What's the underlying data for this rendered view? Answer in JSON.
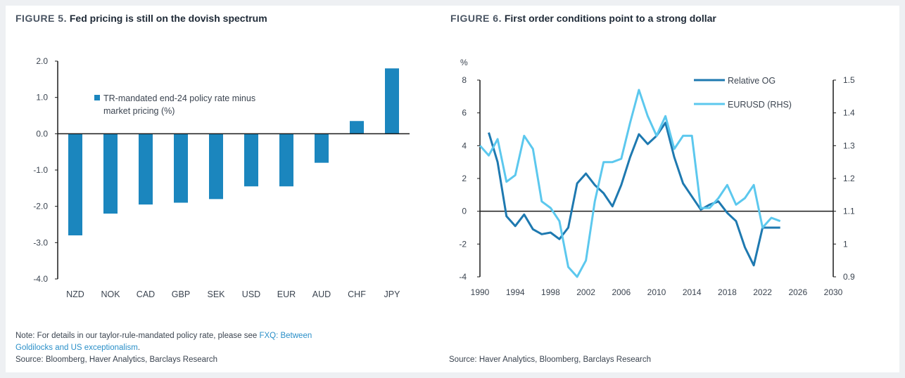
{
  "figure5": {
    "label": "FIGURE 5.",
    "title": "Fed pricing is still on the dovish spectrum",
    "note_prefix": "Note: For details in our taylor-rule-mandated policy rate, please see ",
    "note_link_1": "FXQ: Between",
    "note_link_2": "Goldilocks and US exceptionalism",
    "note_suffix": ".",
    "source": "Source: Bloomberg, Haver Analytics, Barclays Research"
  },
  "figure6": {
    "label": "FIGURE 6.",
    "title": "First order conditions point to a strong dollar",
    "source": "Source: Haver Analytics, Bloomberg, Barclays Research"
  },
  "colors": {
    "bar": "#1b86be",
    "dark_line": "#1e79b0",
    "light_line": "#5cc8ee",
    "axis": "#1a1a1a"
  },
  "chart_data": [
    {
      "type": "bar",
      "legend": [
        "TR-mandated end-24 policy rate minus",
        "market pricing (%)"
      ],
      "categories": [
        "NZD",
        "NOK",
        "CAD",
        "GBP",
        "SEK",
        "USD",
        "EUR",
        "AUD",
        "CHF",
        "JPY"
      ],
      "values": [
        -2.8,
        -2.2,
        -1.95,
        -1.9,
        -1.8,
        -1.45,
        -1.45,
        -0.8,
        0.35,
        1.8
      ],
      "ylim": [
        -4.0,
        2.0
      ],
      "yticks": [
        "2.0",
        "1.0",
        "0.0",
        "-1.0",
        "-2.0",
        "-3.0",
        "-4.0"
      ],
      "ytick_values": [
        2,
        1,
        0,
        -1,
        -2,
        -3,
        -4
      ]
    },
    {
      "type": "line",
      "ylabel_left": "%",
      "yticks_left": [
        "8",
        "6",
        "4",
        "2",
        "0",
        "-2",
        "-4"
      ],
      "ytick_values_left": [
        8,
        6,
        4,
        2,
        0,
        -2,
        -4
      ],
      "ylim_left": [
        -4,
        8
      ],
      "yticks_right": [
        "1.5",
        "1.4",
        "1.3",
        "1.2",
        "1.1",
        "1",
        "0.9"
      ],
      "ytick_values_right": [
        1.5,
        1.4,
        1.3,
        1.2,
        1.1,
        1.0,
        0.9
      ],
      "ylim_right": [
        0.9,
        1.5
      ],
      "xticks": [
        "1990",
        "1994",
        "1998",
        "2002",
        "2006",
        "2010",
        "2014",
        "2018",
        "2022",
        "2026",
        "2030"
      ],
      "xtick_values": [
        1990,
        1994,
        1998,
        2002,
        2006,
        2010,
        2014,
        2018,
        2022,
        2026,
        2030
      ],
      "xlim": [
        1990,
        2030
      ],
      "series": [
        {
          "name": "Relative OG",
          "axis": "left",
          "x": [
            1991,
            1992,
            1993,
            1994,
            1995,
            1996,
            1997,
            1998,
            1999,
            2000,
            2001,
            2002,
            2003,
            2004,
            2005,
            2006,
            2007,
            2008,
            2009,
            2010,
            2011,
            2012,
            2013,
            2014,
            2015,
            2016,
            2017,
            2018,
            2019,
            2020,
            2021,
            2022,
            2023,
            2024
          ],
          "y": [
            4.8,
            3.0,
            -0.3,
            -0.9,
            -0.2,
            -1.1,
            -1.4,
            -1.3,
            -1.7,
            -1.0,
            1.7,
            2.3,
            1.6,
            1.1,
            0.3,
            1.6,
            3.3,
            4.7,
            4.1,
            4.6,
            5.4,
            3.3,
            1.7,
            0.9,
            0.1,
            0.4,
            0.6,
            -0.1,
            -0.6,
            -2.2,
            -3.3,
            -1.0,
            -1.0,
            -1.0
          ]
        },
        {
          "name": "EURUSD (RHS)",
          "axis": "right",
          "x": [
            1990,
            1991,
            1992,
            1993,
            1994,
            1995,
            1996,
            1997,
            1998,
            1999,
            2000,
            2001,
            2002,
            2003,
            2004,
            2005,
            2006,
            2007,
            2008,
            2009,
            2010,
            2011,
            2012,
            2013,
            2014,
            2015,
            2016,
            2017,
            2018,
            2019,
            2020,
            2021,
            2022,
            2023,
            2024
          ],
          "y": [
            1.3,
            1.27,
            1.32,
            1.19,
            1.21,
            1.33,
            1.29,
            1.13,
            1.11,
            1.07,
            0.93,
            0.9,
            0.95,
            1.13,
            1.25,
            1.25,
            1.26,
            1.37,
            1.47,
            1.39,
            1.33,
            1.39,
            1.29,
            1.33,
            1.33,
            1.11,
            1.11,
            1.14,
            1.18,
            1.12,
            1.14,
            1.18,
            1.05,
            1.08,
            1.07
          ]
        }
      ]
    }
  ]
}
